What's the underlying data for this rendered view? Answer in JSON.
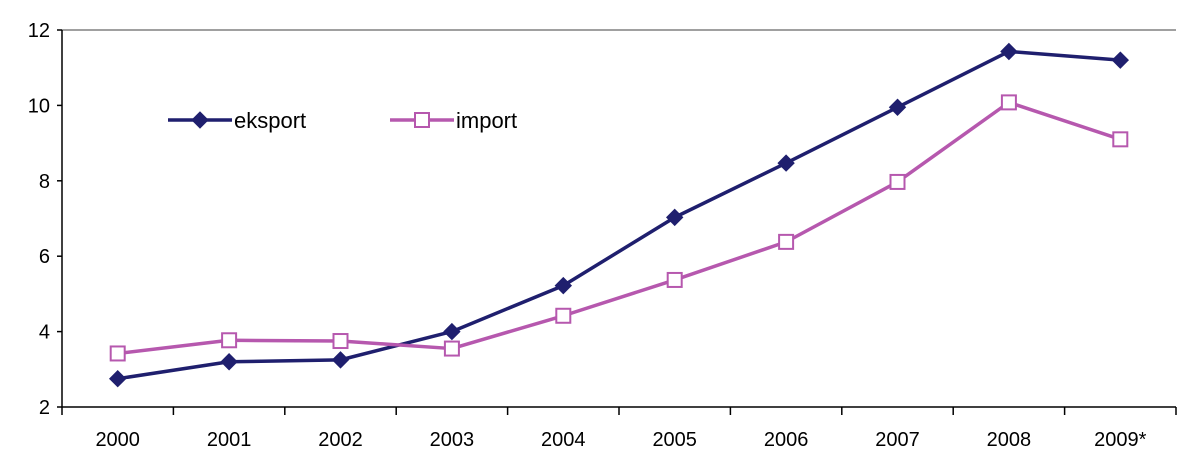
{
  "chart_data": {
    "type": "line",
    "categories": [
      "2000",
      "2001",
      "2002",
      "2003",
      "2004",
      "2005",
      "2006",
      "2007",
      "2008",
      "2009*"
    ],
    "series": [
      {
        "name": "eksport",
        "values": [
          2.75,
          3.2,
          3.25,
          4.0,
          5.22,
          7.03,
          8.47,
          9.95,
          11.43,
          11.2
        ],
        "color": "#1F1F6E",
        "marker": "diamond-filled"
      },
      {
        "name": "import",
        "values": [
          3.42,
          3.77,
          3.75,
          3.55,
          4.42,
          5.37,
          6.38,
          7.97,
          10.08,
          9.1
        ],
        "color": "#B658AE",
        "marker": "square-hollow"
      }
    ],
    "ylim": [
      2,
      12
    ],
    "yticks": [
      "2",
      "4",
      "6",
      "8",
      "10",
      "12"
    ],
    "grid": "top border line only",
    "legend_position": "top-left, inside plot"
  }
}
